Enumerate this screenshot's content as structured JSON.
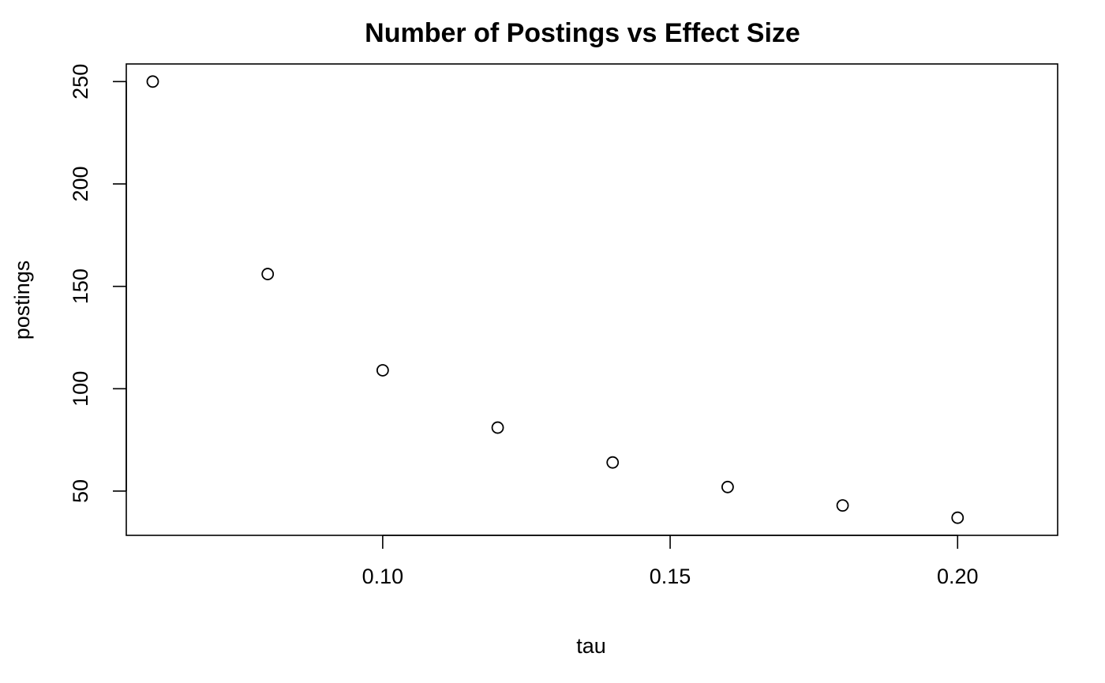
{
  "chart_data": {
    "type": "scatter",
    "title": "Number of Postings vs Effect Size",
    "xlabel": "tau",
    "ylabel": "postings",
    "x": [
      0.06,
      0.08,
      0.1,
      0.12,
      0.14,
      0.16,
      0.18,
      0.2
    ],
    "y": [
      250,
      156,
      109,
      81,
      64,
      52,
      43,
      37
    ],
    "xlim": [
      0.0554,
      0.2174
    ],
    "ylim": [
      28.4,
      258.6
    ],
    "x_ticks": [
      0.1,
      0.15,
      0.2
    ],
    "x_tick_labels": [
      "0.10",
      "0.15",
      "0.20"
    ],
    "y_ticks": [
      50,
      100,
      150,
      200,
      250
    ],
    "y_tick_labels": [
      "50",
      "100",
      "150",
      "200",
      "250"
    ],
    "marker": "open-circle",
    "grid": false,
    "legend": "none",
    "colors": {
      "background": "#ffffff",
      "foreground": "#000000"
    }
  }
}
